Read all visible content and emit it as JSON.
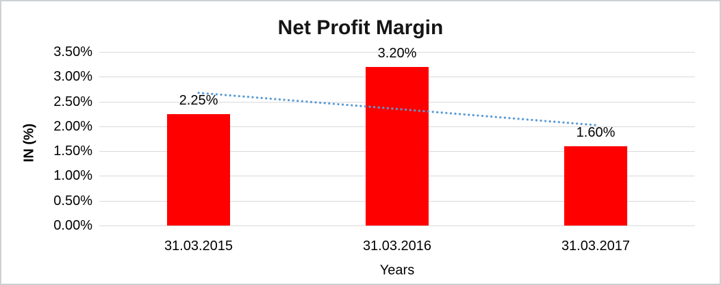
{
  "window": {
    "background_color": "#ffffff",
    "border_color": "#cdd0d3"
  },
  "chart_data": {
    "type": "bar",
    "title": "Net Profit Margin",
    "xlabel": "Years",
    "ylabel": "IN (%)",
    "categories": [
      "31.03.2015",
      "31.03.2016",
      "31.03.2017"
    ],
    "values": [
      2.25,
      3.2,
      1.6
    ],
    "data_labels": [
      "2.25%",
      "3.20%",
      "1.60%"
    ],
    "ylim": [
      0,
      3.5
    ],
    "ytick_step": 0.5,
    "ytick_labels": [
      "0.00%",
      "0.50%",
      "1.00%",
      "1.50%",
      "2.00%",
      "2.50%",
      "3.00%",
      "3.50%"
    ],
    "grid": true,
    "legend": "none",
    "bar_color": "#ff0000",
    "gridline_color": "#d9d9d9",
    "text_color": "#000000",
    "trendline": {
      "type": "linear",
      "style": "dotted",
      "color": "#5b9bd5"
    }
  }
}
